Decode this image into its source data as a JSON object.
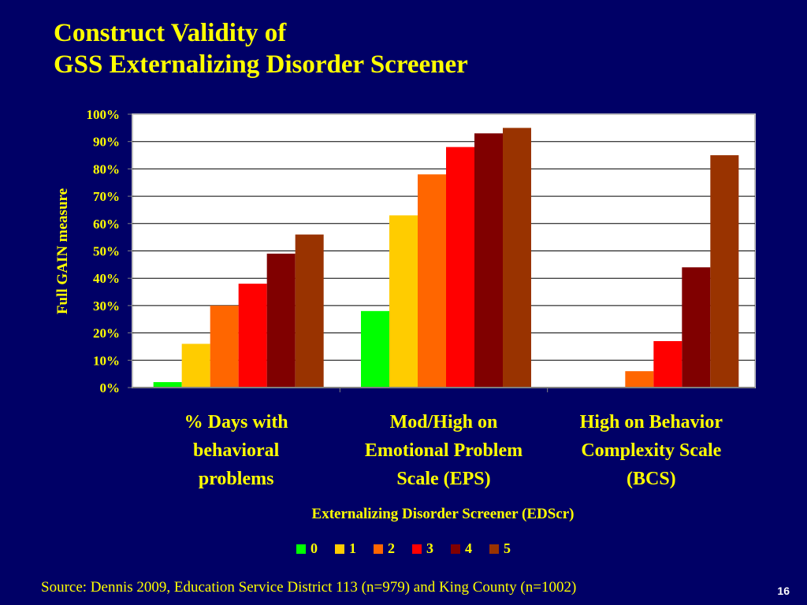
{
  "title": {
    "line1": "Construct Validity of",
    "line2": "GSS Externalizing Disorder Screener"
  },
  "source": "Source:  Dennis 2009, Education Service District 113 (n=979) and King County (n=1002)",
  "page_number": "16",
  "colors": {
    "background": "#000066",
    "text": "#ffff00",
    "plot_background": "#ffffff"
  },
  "chart_data": {
    "type": "bar",
    "categories": [
      [
        "% Days with",
        "behavioral",
        "problems"
      ],
      [
        "Mod/High on",
        "Emotional Problem",
        "Scale (EPS)"
      ],
      [
        "High on  Behavior",
        "Complexity Scale",
        "(BCS)"
      ]
    ],
    "series": [
      {
        "name": "0",
        "color": "#00ff00",
        "values": [
          2,
          28,
          0
        ]
      },
      {
        "name": "1",
        "color": "#ffcc00",
        "values": [
          16,
          63,
          0
        ]
      },
      {
        "name": "2",
        "color": "#ff6600",
        "values": [
          30,
          78,
          6
        ]
      },
      {
        "name": "3",
        "color": "#ff0000",
        "values": [
          38,
          88,
          17
        ]
      },
      {
        "name": "4",
        "color": "#800000",
        "values": [
          49,
          93,
          44
        ]
      },
      {
        "name": "5",
        "color": "#993300",
        "values": [
          56,
          95,
          85
        ]
      }
    ],
    "xlabel": "Externalizing Disorder Screener (EDScr)",
    "ylabel": "Full GAIN measure",
    "ylim": [
      0,
      100
    ],
    "yticks": [
      "0%",
      "10%",
      "20%",
      "30%",
      "40%",
      "50%",
      "60%",
      "70%",
      "80%",
      "90%",
      "100%"
    ],
    "grid": true,
    "legend": "bottom"
  }
}
